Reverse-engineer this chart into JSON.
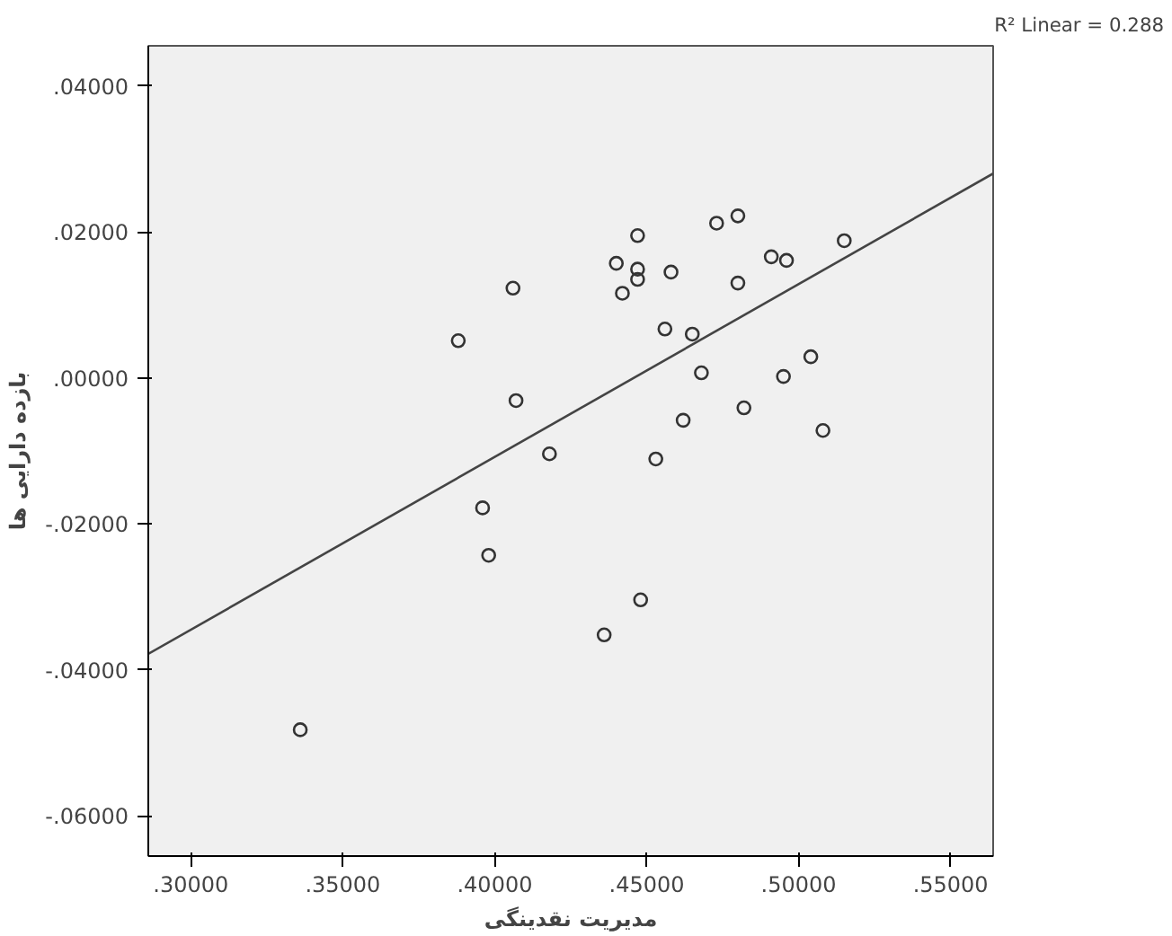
{
  "chart_data": {
    "type": "scatter",
    "xlabel": "مدیریت نقدینگی",
    "ylabel": "بازده دارایی ها",
    "annotations": [
      "R² Linear = 0.288"
    ],
    "xlim": [
      0.286,
      0.564
    ],
    "ylim": [
      -0.0655,
      0.0455
    ],
    "xticks": [
      {
        "value": 0.3,
        "label": ".30000"
      },
      {
        "value": 0.35,
        "label": ".35000"
      },
      {
        "value": 0.4,
        "label": ".40000"
      },
      {
        "value": 0.45,
        "label": ".45000"
      },
      {
        "value": 0.5,
        "label": ".50000"
      },
      {
        "value": 0.55,
        "label": ".55000"
      }
    ],
    "yticks": [
      {
        "value": 0.04,
        "label": ".04000"
      },
      {
        "value": 0.02,
        "label": ".02000"
      },
      {
        "value": 0.0,
        "label": ".00000"
      },
      {
        "value": -0.02,
        "label": "-.02000"
      },
      {
        "value": -0.04,
        "label": "-.04000"
      },
      {
        "value": -0.06,
        "label": "-.06000"
      }
    ],
    "grid": false,
    "marker": "circle",
    "series": [
      {
        "color": "#333333",
        "x": [
          0.336,
          0.388,
          0.406,
          0.407,
          0.418,
          0.396,
          0.398,
          0.44,
          0.447,
          0.447,
          0.447,
          0.442,
          0.458,
          0.456,
          0.465,
          0.468,
          0.462,
          0.453,
          0.482,
          0.473,
          0.48,
          0.48,
          0.491,
          0.496,
          0.515,
          0.504,
          0.495,
          0.508,
          0.448,
          0.436
        ],
        "values": [
          -0.0482,
          0.0051,
          0.0123,
          -0.0031,
          -0.0104,
          -0.0178,
          -0.0243,
          0.0157,
          0.0195,
          0.0149,
          0.0135,
          0.0116,
          0.0145,
          0.0067,
          0.006,
          0.0007,
          -0.0058,
          -0.0111,
          -0.0041,
          0.0212,
          0.0222,
          0.013,
          0.0166,
          0.0161,
          0.0188,
          0.0029,
          0.0002,
          -0.0072,
          -0.0304,
          -0.0352
        ]
      },
      {
        "type": "line",
        "color": "#444444",
        "line_style": "solid",
        "marker": "none",
        "x": [
          0.286,
          0.564
        ],
        "values": [
          -0.0378,
          0.028
        ]
      }
    ]
  }
}
